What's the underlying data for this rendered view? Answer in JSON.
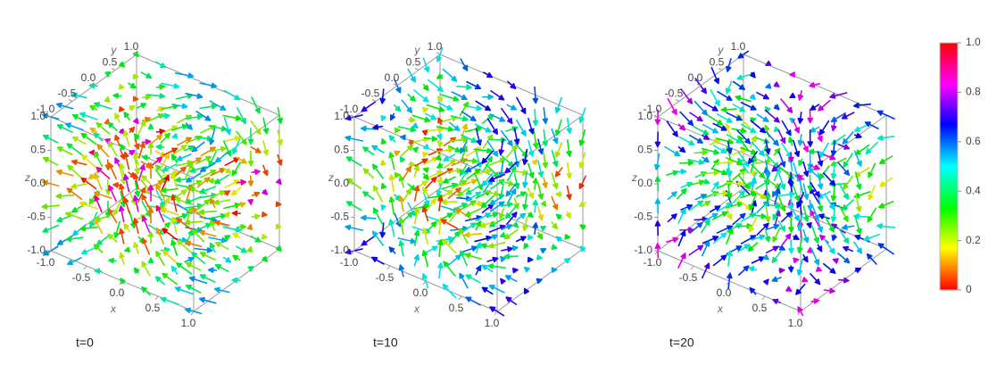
{
  "chart_data": [
    {
      "type": "vector3d",
      "title": "t=0",
      "xlabel": "x",
      "ylabel": "y",
      "zlabel": "z",
      "xlim": [
        -1,
        1
      ],
      "ylim": [
        -1,
        1
      ],
      "zlim": [
        -1,
        1
      ],
      "xticks": [
        {
          "value": -1,
          "label": "-1.0"
        },
        -0.5,
        {
          "value": 0,
          "label": "0.0"
        },
        0.5,
        {
          "value": 1,
          "label": "1.0"
        }
      ],
      "yticks": [
        {
          "value": -1,
          "label": "-1.0"
        },
        -0.5,
        {
          "value": 0,
          "label": "0.0"
        },
        0.5,
        {
          "value": 1,
          "label": "1.0"
        }
      ],
      "zticks": [
        {
          "value": -1,
          "label": "-1.0"
        },
        -0.5,
        {
          "value": 0,
          "label": "0.0"
        },
        0.5,
        {
          "value": 1,
          "label": "1.0"
        }
      ]
    },
    {
      "type": "vector3d",
      "title": "t=10",
      "xlabel": "x",
      "ylabel": "y",
      "zlabel": "z",
      "xlim": [
        -1,
        1
      ],
      "ylim": [
        -1,
        1
      ],
      "zlim": [
        -1,
        1
      ],
      "xticks": [
        {
          "value": -1,
          "label": "-1.0"
        },
        -0.5,
        {
          "value": 0,
          "label": "0.0"
        },
        0.5,
        {
          "value": 1,
          "label": "1.0"
        }
      ],
      "yticks": [
        {
          "value": -1,
          "label": "-1.0"
        },
        -0.5,
        {
          "value": 0,
          "label": "0.0"
        },
        0.5,
        {
          "value": 1,
          "label": "1.0"
        }
      ],
      "zticks": [
        {
          "value": -1,
          "label": "-1.0"
        },
        -0.5,
        {
          "value": 0,
          "label": "0.0"
        },
        0.5,
        {
          "value": 1,
          "label": "1.0"
        }
      ]
    },
    {
      "type": "vector3d",
      "title": "t=20",
      "xlabel": "x",
      "ylabel": "y",
      "zlabel": "z",
      "xlim": [
        -1,
        1
      ],
      "ylim": [
        -1,
        1
      ],
      "zlim": [
        -1,
        1
      ],
      "xticks": [
        {
          "value": -1,
          "label": "-1.0"
        },
        -0.5,
        {
          "value": 0,
          "label": "0.0"
        },
        0.5,
        {
          "value": 1,
          "label": "1.0"
        }
      ],
      "yticks": [
        {
          "value": -1,
          "label": "-1.0"
        },
        -0.5,
        {
          "value": 0,
          "label": "0.0"
        },
        0.5,
        {
          "value": 1,
          "label": "1.0"
        }
      ],
      "zticks": [
        {
          "value": -1,
          "label": "-1.0"
        },
        -0.5,
        {
          "value": 0,
          "label": "0.0"
        },
        0.5,
        {
          "value": 1,
          "label": "1.0"
        }
      ]
    }
  ],
  "colorbar": {
    "ylim": [
      0,
      1
    ],
    "yticks": [
      0,
      0.2,
      0.4,
      0.6,
      0.8,
      {
        "value": 1,
        "label": "1.0"
      }
    ]
  }
}
